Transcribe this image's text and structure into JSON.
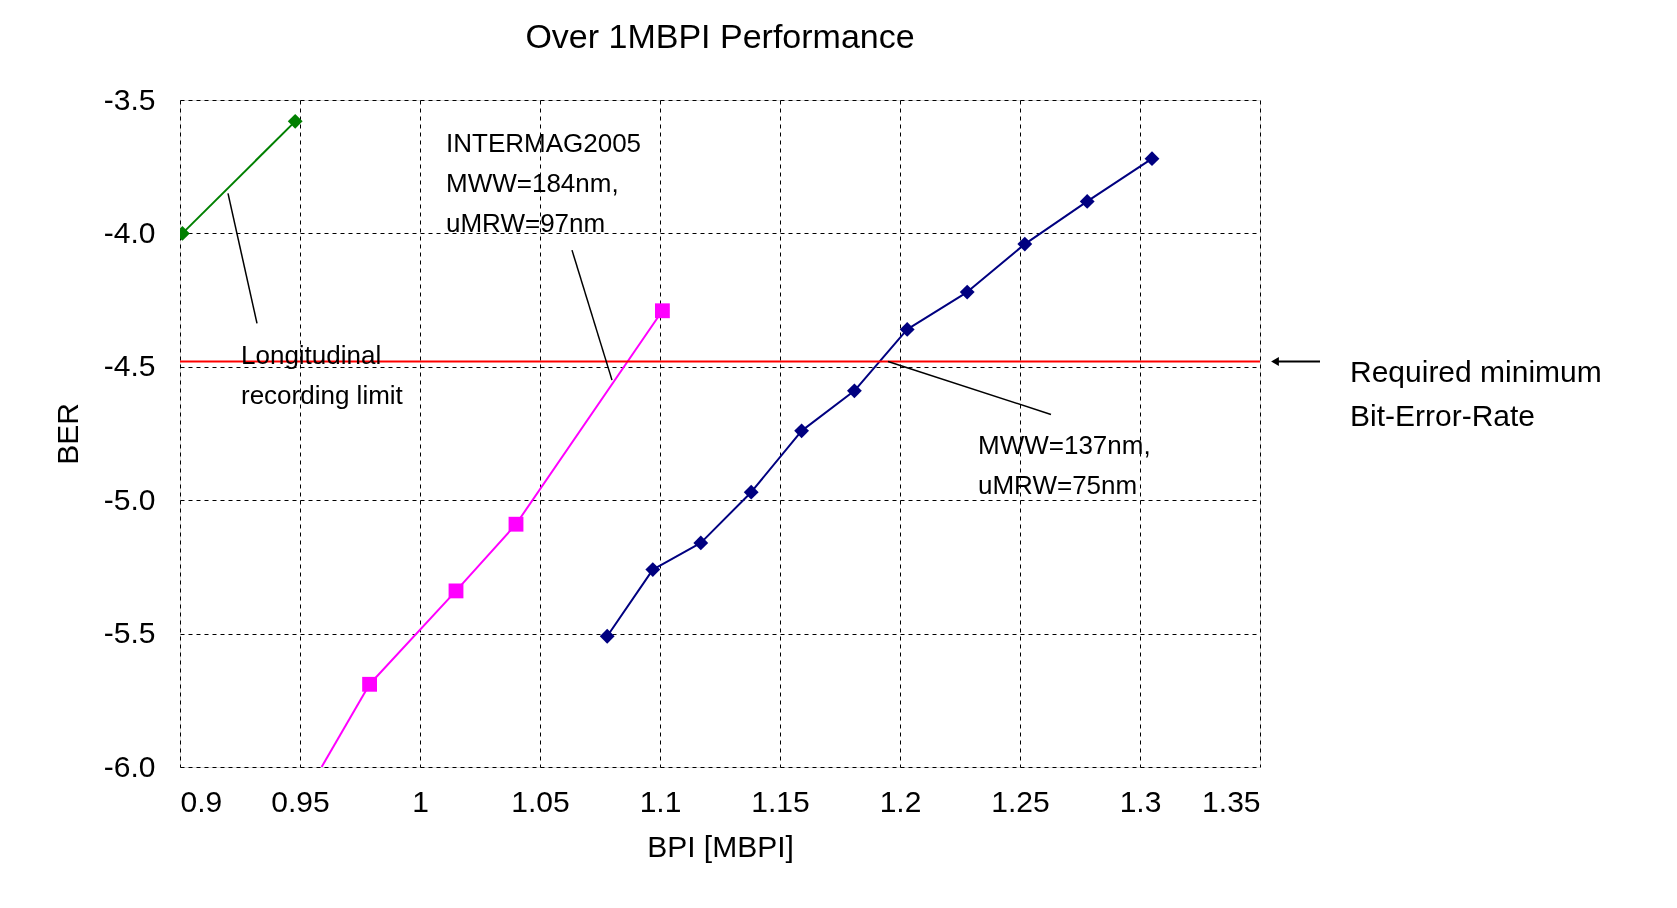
{
  "chart_data": {
    "type": "line",
    "title": "Over 1MBPI Performance",
    "xlabel": "BPI [MBPI]",
    "ylabel": "BER",
    "xlim": [
      0.9,
      1.35
    ],
    "xticks": [
      0.9,
      0.95,
      1,
      1.05,
      1.1,
      1.15,
      1.2,
      1.25,
      1.3,
      1.35
    ],
    "ylim": [
      -6.0,
      -3.5
    ],
    "yticks": [
      {
        "value": -6.0,
        "label": "-6.0"
      },
      {
        "value": -5.5,
        "label": "-5.5"
      },
      {
        "value": -5.0,
        "label": "-5.0"
      },
      {
        "value": -4.5,
        "label": "-4.5"
      },
      {
        "value": -4.0,
        "label": "-4.0"
      },
      {
        "value": -3.5,
        "label": "-3.5"
      }
    ],
    "grid": true,
    "legend": false,
    "line_style": "solid",
    "series": [
      {
        "color": "#008000",
        "marker": "diamond",
        "x": [
          0.901,
          0.948
        ],
        "values": [
          -4.0,
          -3.58
        ]
      },
      {
        "color": "#ff00ff",
        "x": [
          0.959,
          0.979
        ],
        "values": [
          -6.0,
          -5.69
        ]
      },
      {
        "color": "#ff00ff",
        "marker": "square",
        "x": [
          0.979,
          1.015,
          1.04,
          1.101
        ],
        "values": [
          -5.69,
          -5.34,
          -5.09,
          -4.29
        ]
      },
      {
        "color": "#000080",
        "marker": "diamond",
        "x": [
          1.078,
          1.097,
          1.117,
          1.138,
          1.159,
          1.181,
          1.203,
          1.228,
          1.252,
          1.278,
          1.305
        ],
        "values": [
          -5.51,
          -5.26,
          -5.16,
          -4.97,
          -4.74,
          -4.59,
          -4.36,
          -4.22,
          -4.04,
          -3.88,
          -3.72
        ]
      }
    ],
    "ref_lines": [
      {
        "axis": "y",
        "value": -4.48,
        "color": "#ff0000"
      }
    ],
    "annotations": [
      {
        "text": "INTERMAG2005\nMWW=184nm,\nuMRW=97nm",
        "x": 1.08,
        "y": -4.55
      },
      {
        "text": "Longitudinal\nrecording limit",
        "x": 0.92,
        "y": -3.85
      },
      {
        "text": "MWW=137nm,\nuMRW=75nm",
        "x": 1.195,
        "y": -4.48
      },
      "Required minimum\nBit-Error-Rate"
    ]
  }
}
